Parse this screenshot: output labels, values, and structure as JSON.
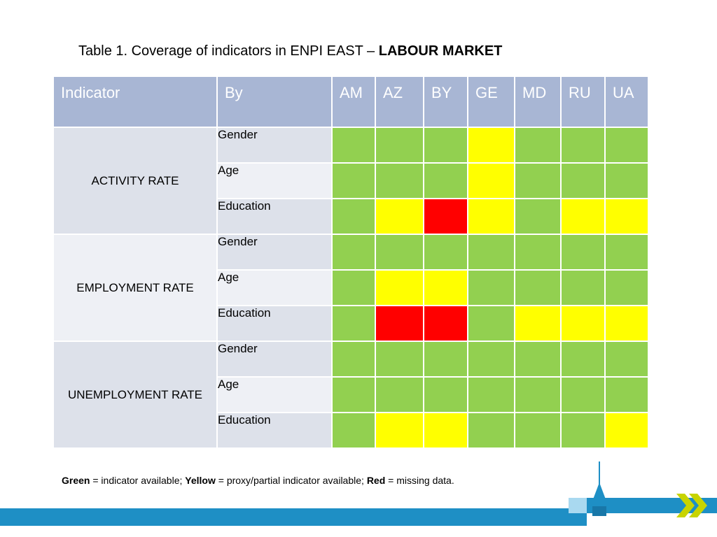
{
  "title": {
    "prefix": "Table 1. Coverage of indicators in ENPI EAST – ",
    "emphasis": "LABOUR MARKET"
  },
  "table": {
    "headers": [
      "Indicator",
      "By",
      "AM",
      "AZ",
      "BY",
      "GE",
      "MD",
      "RU",
      "UA"
    ],
    "groups": [
      {
        "indicator": "ACTIVITY RATE",
        "rows": [
          {
            "by": "Gender",
            "status": [
              "green",
              "green",
              "green",
              "yellow",
              "green",
              "green",
              "green"
            ]
          },
          {
            "by": "Age",
            "status": [
              "green",
              "green",
              "green",
              "yellow",
              "green",
              "green",
              "green"
            ]
          },
          {
            "by": "Education",
            "status": [
              "green",
              "yellow",
              "red",
              "yellow",
              "green",
              "yellow",
              "yellow"
            ]
          }
        ]
      },
      {
        "indicator": "EMPLOYMENT RATE",
        "rows": [
          {
            "by": "Gender",
            "status": [
              "green",
              "green",
              "green",
              "green",
              "green",
              "green",
              "green"
            ]
          },
          {
            "by": "Age",
            "status": [
              "green",
              "yellow",
              "yellow",
              "green",
              "green",
              "green",
              "green"
            ]
          },
          {
            "by": "Education",
            "status": [
              "green",
              "red",
              "red",
              "green",
              "yellow",
              "yellow",
              "yellow"
            ]
          }
        ]
      },
      {
        "indicator": "UNEMPLOYMENT RATE",
        "rows": [
          {
            "by": "Gender",
            "status": [
              "green",
              "green",
              "green",
              "green",
              "green",
              "green",
              "green"
            ]
          },
          {
            "by": "Age",
            "status": [
              "green",
              "green",
              "green",
              "green",
              "green",
              "green",
              "green"
            ]
          },
          {
            "by": "Education",
            "status": [
              "green",
              "yellow",
              "yellow",
              "green",
              "green",
              "green",
              "yellow"
            ]
          }
        ]
      }
    ]
  },
  "legend": {
    "green_label": "Green",
    "green_text": " = indicator available; ",
    "yellow_label": "Yellow",
    "yellow_text": " = proxy/partial indicator available; ",
    "red_label": "Red",
    "red_text": " = missing data."
  },
  "colors": {
    "green": "#92d050",
    "yellow": "#ffff00",
    "red": "#ff0000",
    "header_bg": "#a8b6d4",
    "footer_blue": "#1e8fc5",
    "chevron": "#c8d400"
  }
}
